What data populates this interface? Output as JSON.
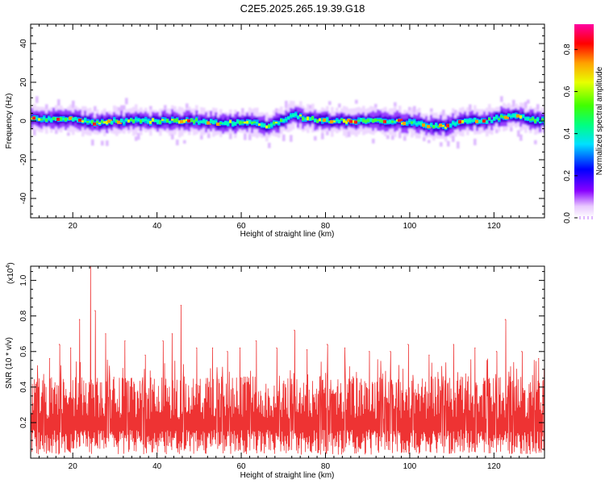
{
  "title": "C2E5.2025.265.19.39.G18",
  "chart_data": [
    {
      "type": "heatmap",
      "xlabel": "Height of straight line (km)",
      "ylabel": "Frequency (Hz)",
      "xlim": [
        10,
        132
      ],
      "ylim": [
        -50,
        50
      ],
      "xticks": [
        20,
        40,
        60,
        80,
        100,
        120
      ],
      "yticks": [
        -40,
        -20,
        0,
        20,
        40
      ],
      "colorbar": {
        "label": "Normalized spectral amplitude",
        "range": [
          0,
          0.92
        ],
        "ticks": [
          "0.0",
          "0.2",
          "0.4",
          "0.6",
          "0.8"
        ]
      },
      "ridge": {
        "x": [
          10,
          15,
          20,
          22,
          24,
          26,
          30,
          35,
          40,
          45,
          50,
          55,
          58,
          60,
          62,
          64,
          66,
          68,
          70,
          72,
          74,
          76,
          80,
          85,
          90,
          95,
          100,
          103,
          106,
          108,
          110,
          114,
          118,
          120,
          122,
          124,
          126,
          128,
          130,
          132
        ],
        "y": [
          1,
          1,
          1,
          0,
          -1,
          -1,
          0,
          0,
          0,
          0,
          0,
          -1,
          -1,
          0,
          -1,
          -2,
          -3,
          -1,
          1,
          3,
          2,
          1,
          0,
          0,
          0,
          0,
          -1,
          -2,
          -3,
          -3,
          -1,
          0,
          0,
          1,
          2,
          3,
          2,
          1,
          0,
          0
        ]
      }
    },
    {
      "type": "line",
      "xlabel": "Height of straight line (km)",
      "ylabel": "SNR (10 * v/v)",
      "ylabel_multiplier": "(x10",
      "ylabel_exponent": "4",
      "ylabel_close": ")",
      "xlim": [
        10,
        132
      ],
      "ylim": [
        0,
        1.08
      ],
      "xticks": [
        20,
        40,
        60,
        80,
        100,
        120
      ],
      "yticks": [
        "0.2",
        "0.4",
        "0.6",
        "0.8",
        "1.0"
      ],
      "peaks": [
        {
          "x": 14.5,
          "y": 0.56
        },
        {
          "x": 16.8,
          "y": 0.64
        },
        {
          "x": 19.5,
          "y": 0.62
        },
        {
          "x": 21.6,
          "y": 0.78
        },
        {
          "x": 24.2,
          "y": 1.08
        },
        {
          "x": 25.3,
          "y": 0.83
        },
        {
          "x": 27.8,
          "y": 0.7
        },
        {
          "x": 32.4,
          "y": 0.66
        },
        {
          "x": 37.2,
          "y": 0.58
        },
        {
          "x": 41.4,
          "y": 0.66
        },
        {
          "x": 43.6,
          "y": 0.7
        },
        {
          "x": 45.7,
          "y": 0.86
        },
        {
          "x": 49.4,
          "y": 0.62
        },
        {
          "x": 53.2,
          "y": 0.62
        },
        {
          "x": 56.7,
          "y": 0.6
        },
        {
          "x": 59.7,
          "y": 0.62
        },
        {
          "x": 63.5,
          "y": 0.66
        },
        {
          "x": 68.4,
          "y": 0.62
        },
        {
          "x": 72.6,
          "y": 0.72
        },
        {
          "x": 75.6,
          "y": 0.61
        },
        {
          "x": 80.4,
          "y": 0.64
        },
        {
          "x": 84.6,
          "y": 0.62
        },
        {
          "x": 90.4,
          "y": 0.6
        },
        {
          "x": 95.4,
          "y": 0.6
        },
        {
          "x": 99.6,
          "y": 0.64
        },
        {
          "x": 104.6,
          "y": 0.58
        },
        {
          "x": 110.4,
          "y": 0.64
        },
        {
          "x": 115.5,
          "y": 0.62
        },
        {
          "x": 120.6,
          "y": 0.6
        },
        {
          "x": 122.7,
          "y": 0.78
        },
        {
          "x": 126.6,
          "y": 0.6
        },
        {
          "x": 130.6,
          "y": 0.56
        }
      ],
      "color": "#ee3333"
    }
  ]
}
